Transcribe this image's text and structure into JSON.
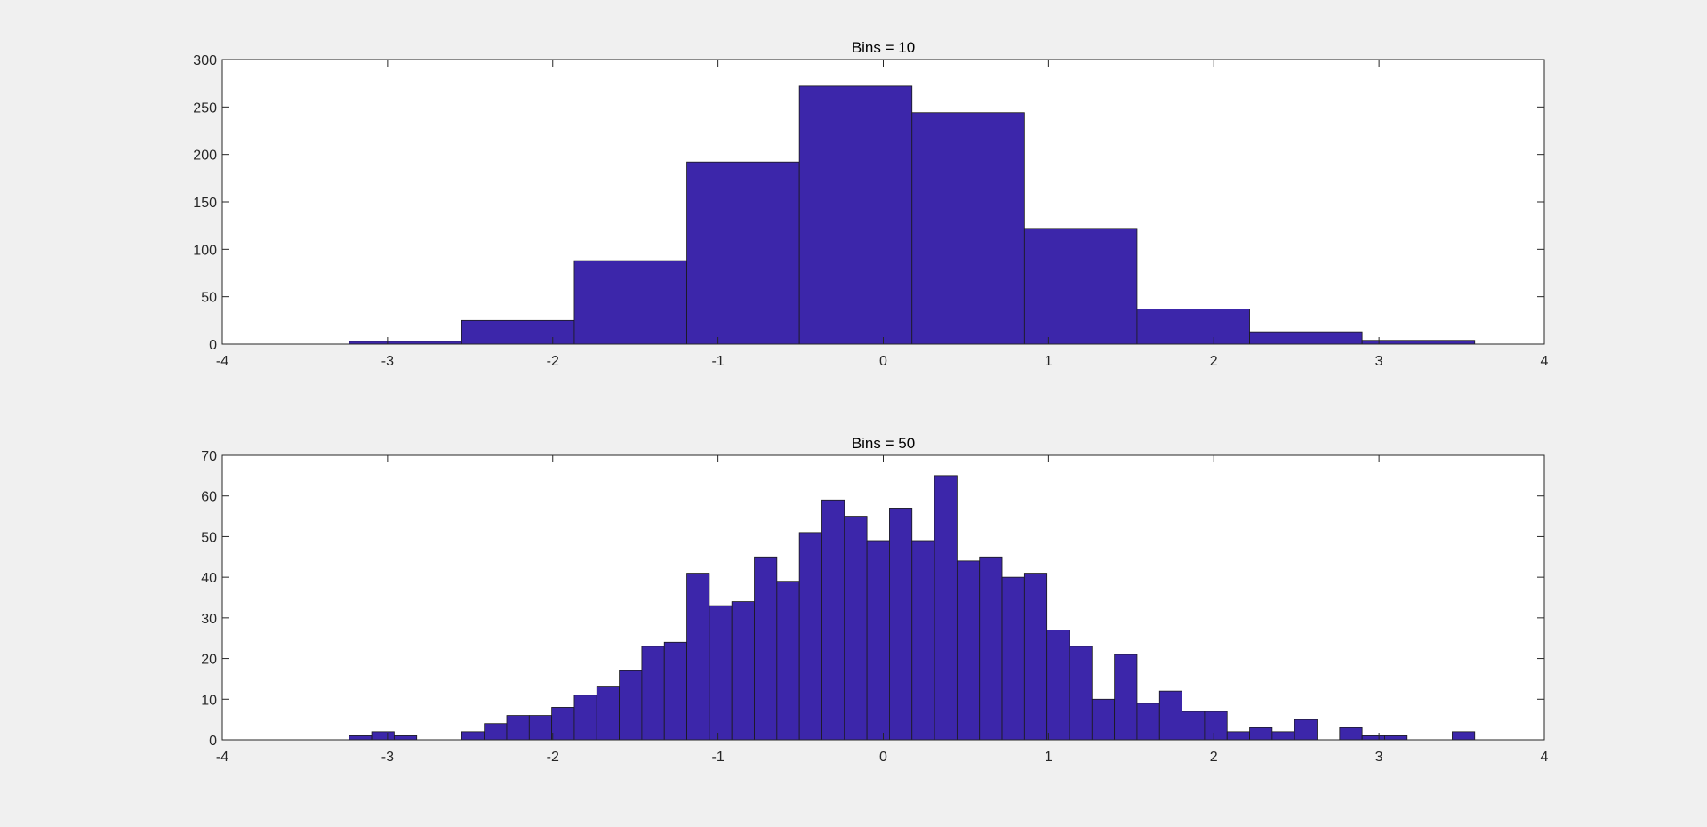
{
  "chart_data": [
    {
      "type": "bar",
      "title": "Bins = 10",
      "xlabel": "",
      "ylabel": "",
      "xlim": [
        -4,
        4
      ],
      "ylim": [
        0,
        300
      ],
      "xticks": [
        -4,
        -3,
        -2,
        -1,
        0,
        1,
        2,
        3,
        4
      ],
      "yticks": [
        0,
        50,
        100,
        150,
        200,
        250,
        300
      ],
      "grid": false,
      "bar_color": "#3c26aa",
      "bin_edges": [
        -3.232,
        -2.5509,
        -1.8698,
        -1.1887,
        -0.5076,
        0.1735,
        0.8546,
        1.5357,
        2.2168,
        2.8979,
        3.579
      ],
      "values": [
        3,
        25,
        88,
        192,
        272,
        244,
        122,
        37,
        13,
        4
      ]
    },
    {
      "type": "bar",
      "title": "Bins = 50",
      "xlabel": "",
      "ylabel": "",
      "xlim": [
        -4,
        4
      ],
      "ylim": [
        0,
        70
      ],
      "xticks": [
        -4,
        -3,
        -2,
        -1,
        0,
        1,
        2,
        3,
        4
      ],
      "yticks": [
        0,
        10,
        20,
        30,
        40,
        50,
        60,
        70
      ],
      "grid": false,
      "bar_color": "#3c26aa",
      "bin_start": -3.232,
      "bin_width": 0.13622,
      "values": [
        1,
        2,
        1,
        0,
        0,
        2,
        4,
        6,
        6,
        8,
        11,
        13,
        17,
        23,
        24,
        41,
        33,
        34,
        45,
        39,
        51,
        59,
        55,
        49,
        57,
        49,
        65,
        44,
        45,
        40,
        41,
        27,
        23,
        10,
        21,
        9,
        12,
        7,
        7,
        2,
        3,
        2,
        5,
        0,
        3,
        1,
        1,
        0,
        0,
        2
      ]
    }
  ]
}
